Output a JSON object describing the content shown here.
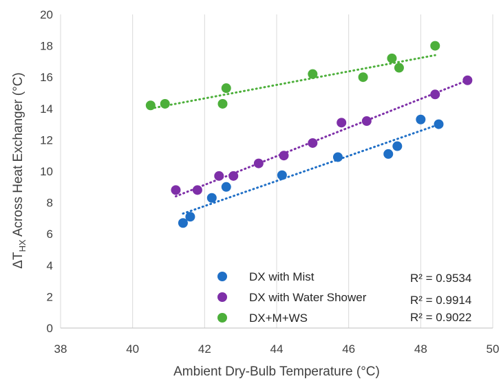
{
  "chart_data": {
    "type": "scatter",
    "title": "",
    "xlabel": "Ambient Dry-Bulb Temperature (°C)",
    "ylabel": {
      "prefix": "ΔT",
      "subscript": "HX",
      "suffix": " Across Heat Exchanger (°C)"
    },
    "xlim": [
      38,
      50
    ],
    "ylim": [
      0,
      20
    ],
    "xticks": [
      38,
      40,
      42,
      44,
      46,
      48,
      50
    ],
    "yticks": [
      0,
      2,
      4,
      6,
      8,
      10,
      12,
      14,
      16,
      18,
      20
    ],
    "grid": "vertical",
    "legend_position": "bottom-center",
    "series": [
      {
        "name": "DX with Mist",
        "color": "#1f6fc6",
        "r2": "R² = 0.9534",
        "trendline": [
          [
            41.4,
            7.3
          ],
          [
            48.4,
            12.9
          ]
        ],
        "points": [
          [
            41.4,
            6.7
          ],
          [
            41.6,
            7.1
          ],
          [
            42.2,
            8.3
          ],
          [
            42.6,
            9.0
          ],
          [
            44.15,
            9.75
          ],
          [
            45.7,
            10.9
          ],
          [
            47.1,
            11.1
          ],
          [
            47.35,
            11.6
          ],
          [
            48.0,
            13.3
          ],
          [
            48.5,
            13.0
          ]
        ]
      },
      {
        "name": "DX with Water Shower",
        "color": "#7e2fa8",
        "r2": "R² = 0.9914",
        "trendline": [
          [
            41.2,
            8.4
          ],
          [
            49.3,
            15.8
          ]
        ],
        "points": [
          [
            41.2,
            8.8
          ],
          [
            41.8,
            8.8
          ],
          [
            42.4,
            9.7
          ],
          [
            42.8,
            9.7
          ],
          [
            43.5,
            10.5
          ],
          [
            44.2,
            11.0
          ],
          [
            45.0,
            11.8
          ],
          [
            45.8,
            13.1
          ],
          [
            46.5,
            13.2
          ],
          [
            48.4,
            14.9
          ],
          [
            49.3,
            15.8
          ]
        ]
      },
      {
        "name": "DX+M+WS",
        "color": "#4caf3a",
        "r2": "R² = 0.9022",
        "trendline": [
          [
            40.5,
            14.0
          ],
          [
            48.4,
            17.4
          ]
        ],
        "points": [
          [
            40.5,
            14.2
          ],
          [
            40.9,
            14.3
          ],
          [
            42.5,
            14.3
          ],
          [
            42.6,
            15.3
          ],
          [
            45.0,
            16.2
          ],
          [
            46.4,
            16.0
          ],
          [
            47.2,
            17.2
          ],
          [
            47.4,
            16.6
          ],
          [
            48.4,
            18.0
          ]
        ]
      }
    ]
  }
}
